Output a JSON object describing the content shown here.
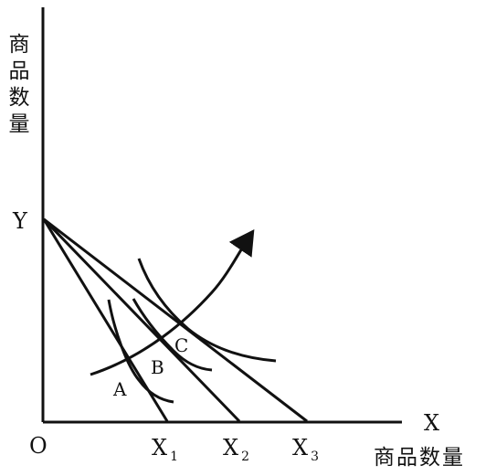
{
  "axes": {
    "y_axis_label": "商品数量",
    "x_axis_label": "商品数量",
    "x_symbol": "X",
    "y_symbol": "Y",
    "origin": "O"
  },
  "budget_lines": [
    {
      "x_name": "X",
      "x_sub": "1"
    },
    {
      "x_name": "X",
      "x_sub": "2"
    },
    {
      "x_name": "X",
      "x_sub": "3"
    }
  ],
  "points": [
    "A",
    "B",
    "C"
  ],
  "colors": {
    "ink": "#111111",
    "background": "#ffffff"
  }
}
